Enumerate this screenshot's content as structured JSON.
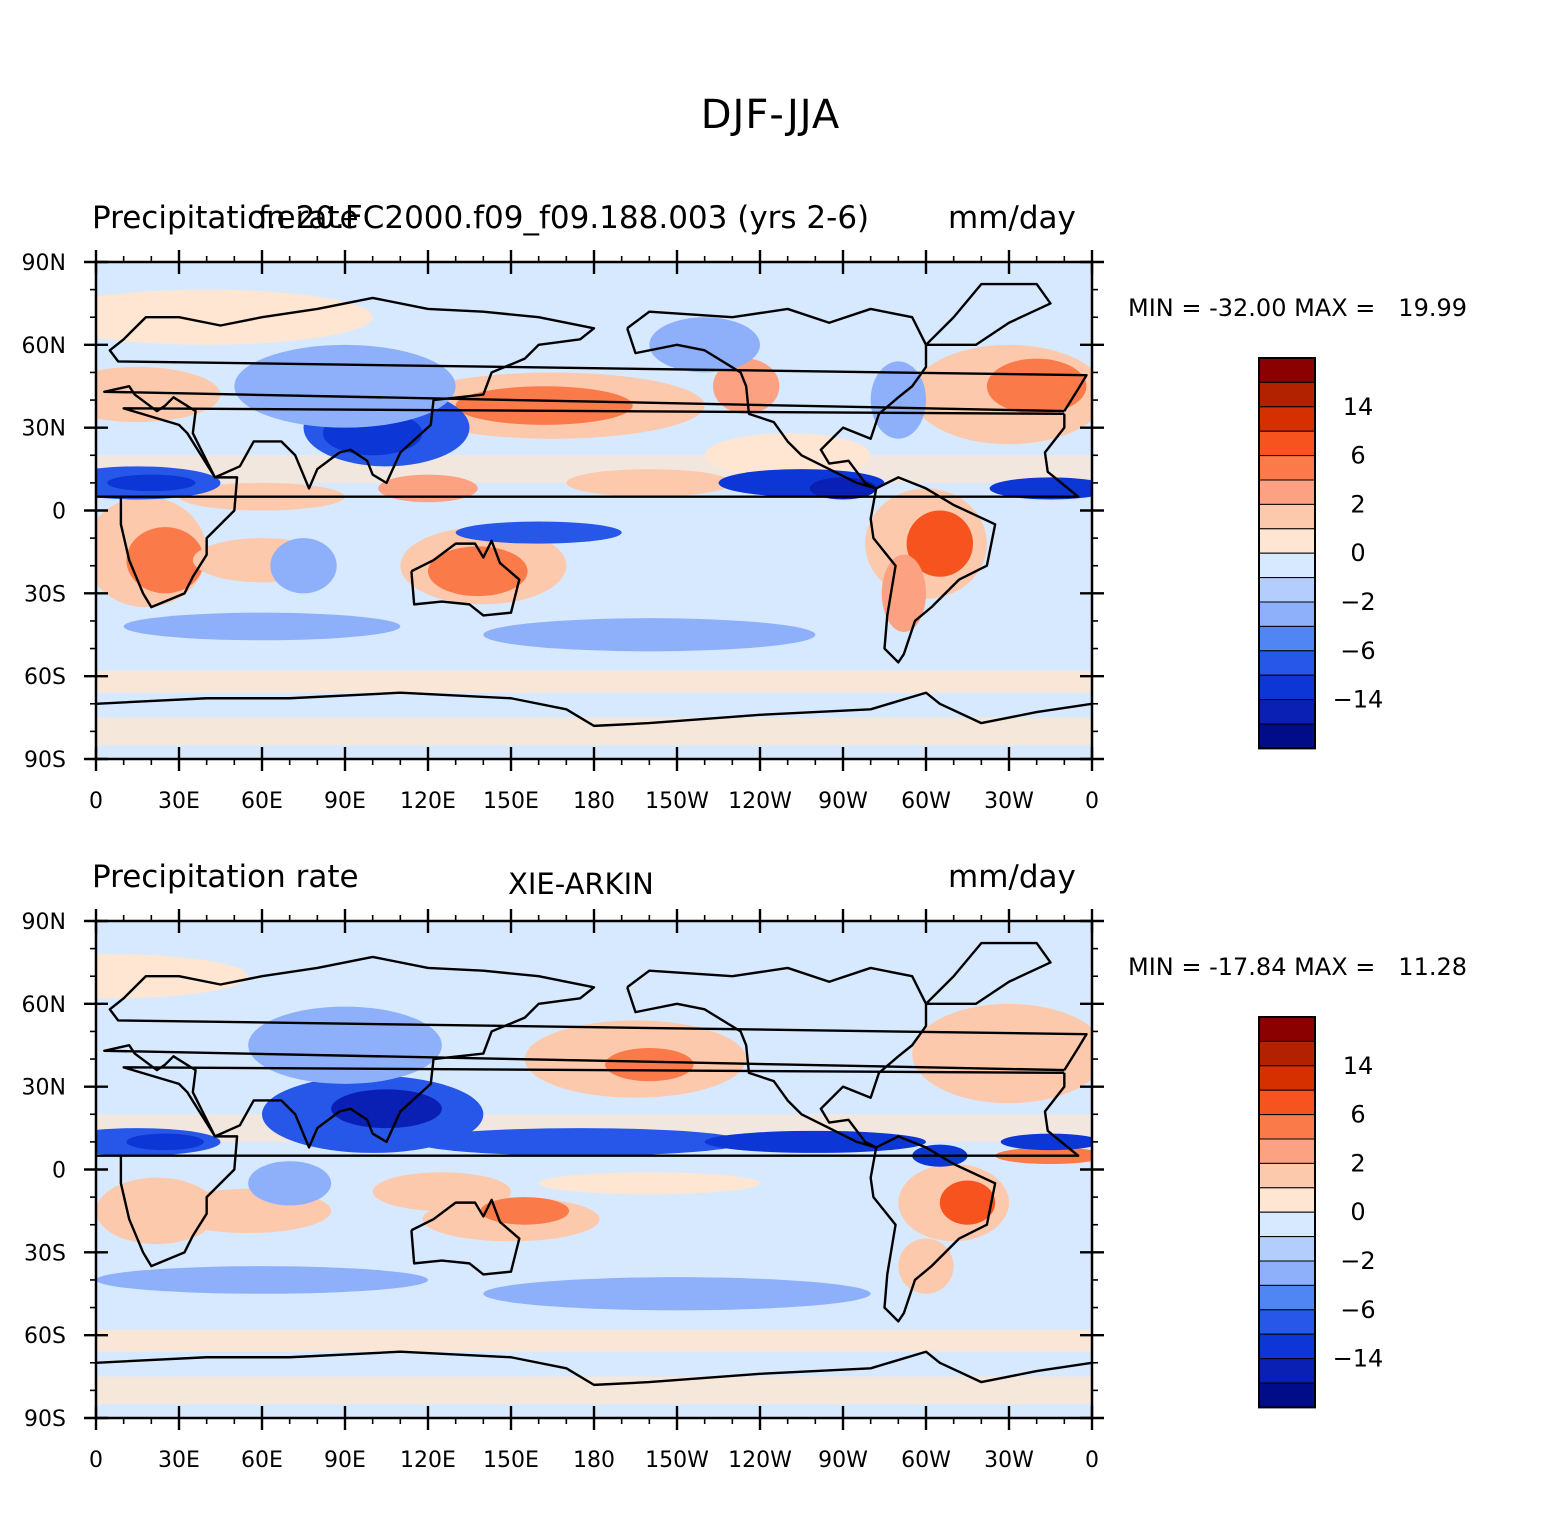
{
  "main_title": "DJF-JJA",
  "panels": [
    {
      "left_title": "Precipitation rate",
      "center_title": "f.e20.FC2000.f09_f09.188.003 (yrs 2-6)",
      "right_title": "mm/day",
      "min_max": "MIN = -32.00 MAX =   19.99",
      "map_kind": "model"
    },
    {
      "left_title": "Precipitation rate",
      "center_title": "XIE-ARKIN",
      "right_title": "mm/day",
      "min_max": "MIN = -17.84 MAX =   11.28",
      "map_kind": "obs"
    }
  ],
  "map": {
    "lat_labels": [
      "90N",
      "60N",
      "30N",
      "0",
      "30S",
      "60S",
      "90S"
    ],
    "lon_labels": [
      "0",
      "30E",
      "60E",
      "90E",
      "120E",
      "150E",
      "180",
      "150W",
      "120W",
      "90W",
      "60W",
      "30W",
      "0"
    ]
  },
  "colorbar": {
    "colors": [
      "#8b0000",
      "#b22200",
      "#d73000",
      "#f7531f",
      "#fb7a4a",
      "#fca283",
      "#fdc9ad",
      "#fee6d2",
      "#d7e9ff",
      "#b3cdfd",
      "#8eb0fa",
      "#4f86f2",
      "#2657e8",
      "#0c36d6",
      "#0a1fb4",
      "#000c88"
    ],
    "labels": [
      "14",
      "6",
      "2",
      "0",
      "-2",
      "-6",
      "-14"
    ]
  }
}
